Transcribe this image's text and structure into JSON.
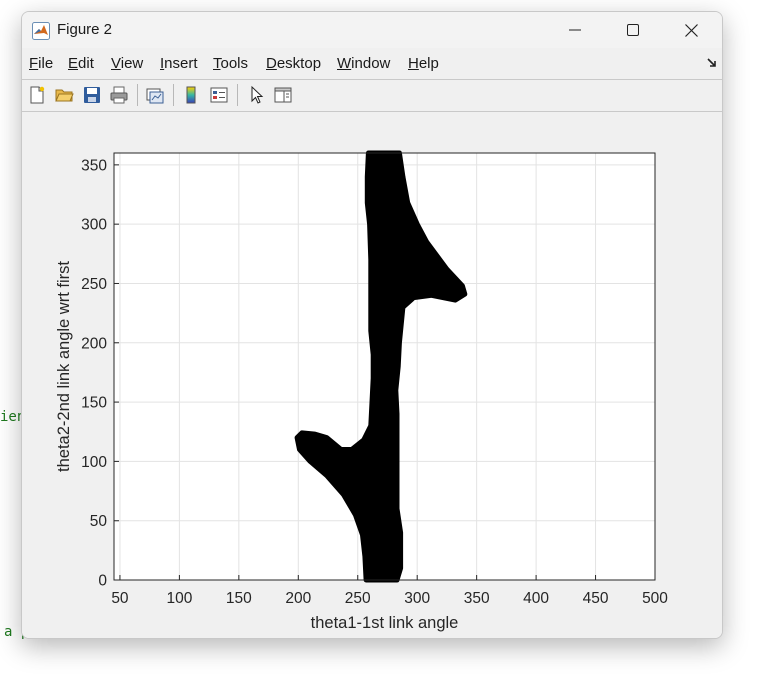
{
  "window": {
    "title": "Figure 2",
    "icon": "matlab-icon",
    "controls": [
      "minimize-icon",
      "maximize-icon",
      "close-icon"
    ]
  },
  "background_code": {
    "line1": "ien",
    "line2": "a p"
  },
  "menu": {
    "items": [
      {
        "label": "File",
        "mnemonic": "F",
        "rest": "ile"
      },
      {
        "label": "Edit",
        "mnemonic": "E",
        "rest": "dit"
      },
      {
        "label": "View",
        "mnemonic": "V",
        "rest": "iew"
      },
      {
        "label": "Insert",
        "mnemonic": "I",
        "rest": "nsert"
      },
      {
        "label": "Tools",
        "mnemonic": "T",
        "rest": "ools"
      },
      {
        "label": "Desktop",
        "mnemonic": "D",
        "rest": "esktop"
      },
      {
        "label": "Window",
        "mnemonic": "W",
        "rest": "indow"
      },
      {
        "label": "Help",
        "mnemonic": "H",
        "rest": "elp"
      }
    ]
  },
  "toolbar": {
    "icons": [
      "new-figure-icon",
      "open-file-icon",
      "save-icon",
      "print-icon",
      "link-plot-icon",
      "colorbar-icon",
      "legend-icon",
      "pointer-icon",
      "property-editor-icon"
    ]
  },
  "chart_data": {
    "type": "scatter",
    "title": "",
    "xlabel": "theta1-1st link angle",
    "ylabel": "theta2-2nd link angle wrt first",
    "xlim": [
      45,
      500
    ],
    "ylim": [
      0,
      360
    ],
    "xticks": [
      50,
      100,
      150,
      200,
      250,
      300,
      350,
      400,
      450,
      500
    ],
    "yticks": [
      0,
      50,
      100,
      150,
      200,
      250,
      300,
      350
    ],
    "grid": true,
    "marker_color": "#000000",
    "regions": [
      {
        "name": "",
        "boundary": [
          [
            257,
            0
          ],
          [
            283,
            0
          ],
          [
            286,
            10
          ],
          [
            286,
            40
          ],
          [
            283,
            60
          ],
          [
            283,
            140
          ],
          [
            282,
            160
          ],
          [
            284,
            180
          ],
          [
            285,
            200
          ],
          [
            288,
            230
          ],
          [
            297,
            238
          ],
          [
            312,
            240
          ],
          [
            332,
            236
          ],
          [
            340,
            241
          ],
          [
            338,
            248
          ],
          [
            325,
            262
          ],
          [
            308,
            285
          ],
          [
            300,
            300
          ],
          [
            292,
            318
          ],
          [
            288,
            340
          ],
          [
            285,
            360
          ],
          [
            259,
            360
          ],
          [
            258,
            340
          ],
          [
            258,
            318
          ],
          [
            260,
            300
          ],
          [
            261,
            270
          ],
          [
            261,
            240
          ],
          [
            261,
            210
          ],
          [
            263,
            190
          ],
          [
            263,
            170
          ],
          [
            262,
            150
          ],
          [
            261,
            130
          ],
          [
            255,
            118
          ],
          [
            245,
            110
          ],
          [
            236,
            110
          ],
          [
            224,
            120
          ],
          [
            214,
            123
          ],
          [
            203,
            124
          ],
          [
            199,
            120
          ],
          [
            201,
            110
          ],
          [
            210,
            100
          ],
          [
            224,
            88
          ],
          [
            238,
            72
          ],
          [
            248,
            55
          ],
          [
            254,
            38
          ],
          [
            256,
            20
          ]
        ]
      }
    ]
  }
}
